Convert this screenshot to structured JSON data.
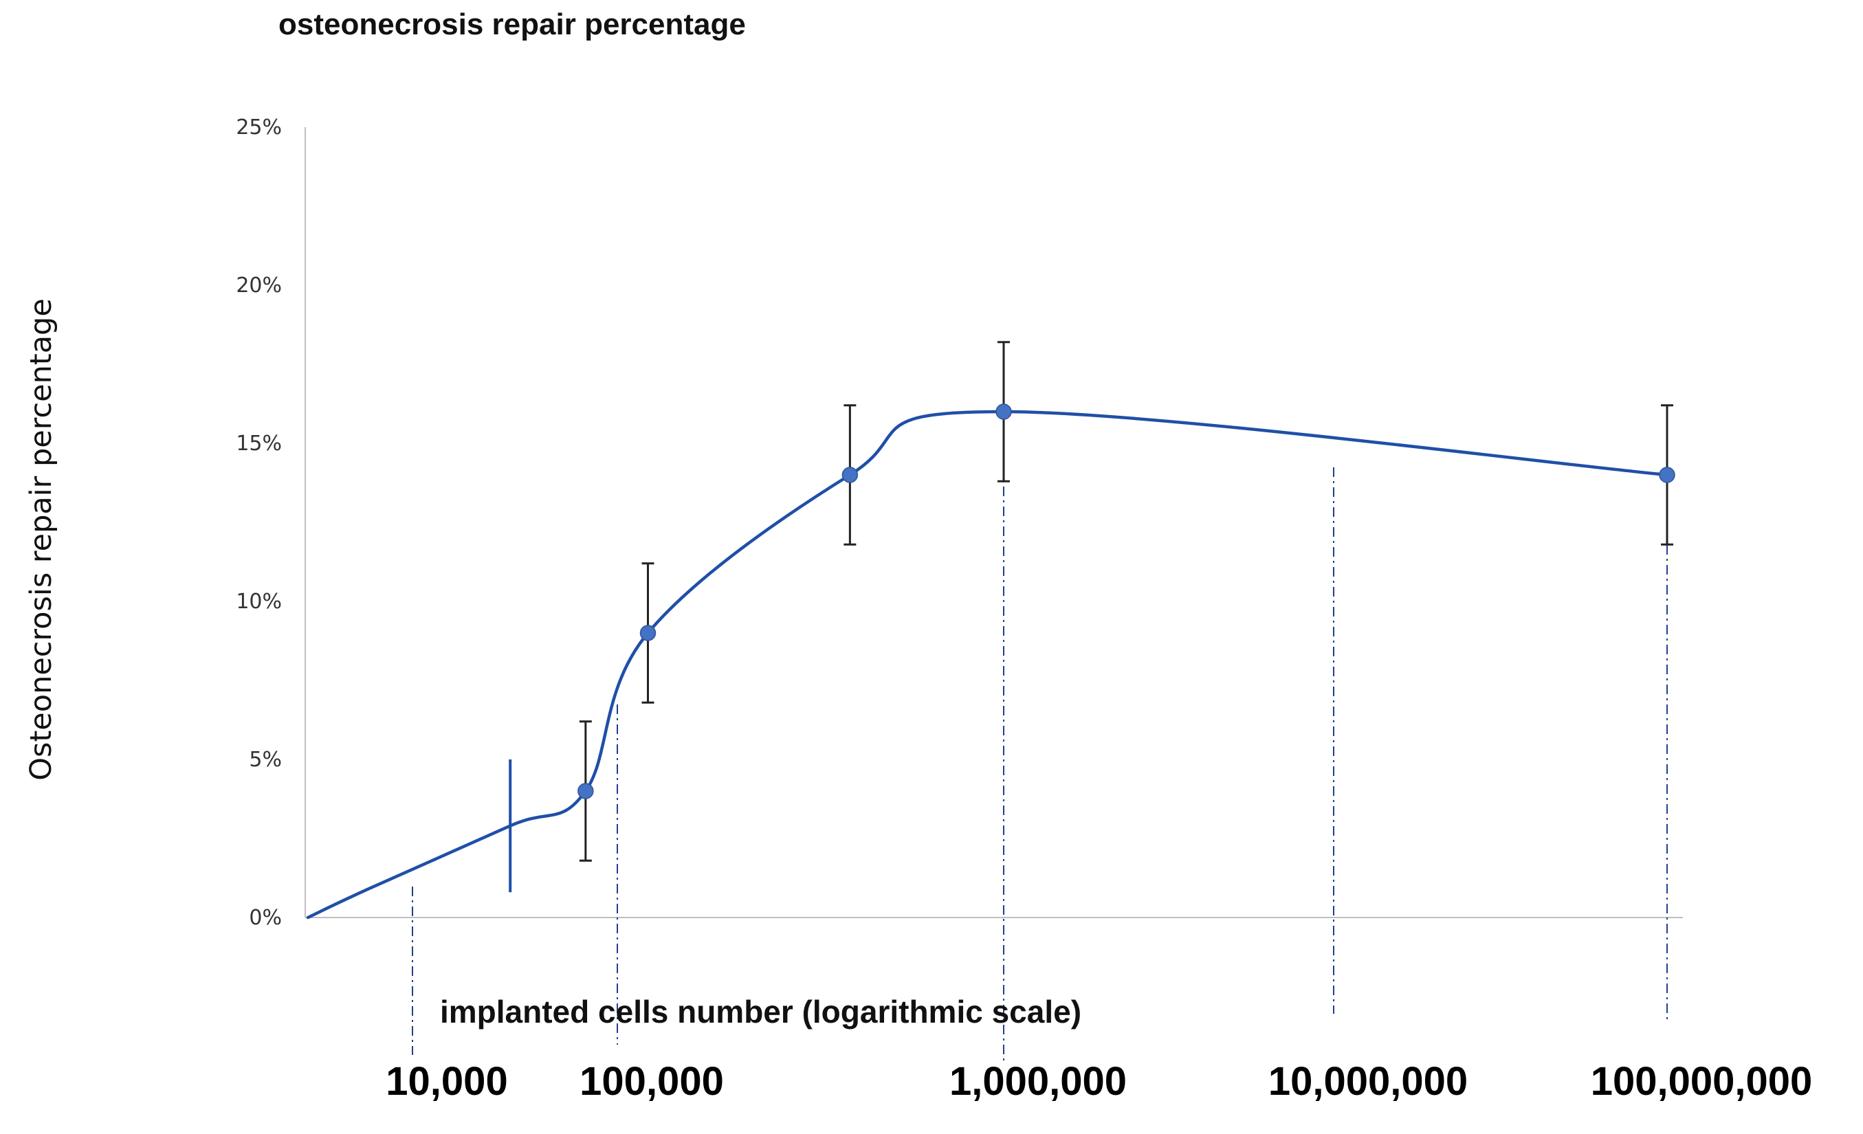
{
  "chart_data": {
    "type": "line",
    "title": "osteonecrosis repair percentage",
    "xlabel": "implanted cells number (logarithmic scale)",
    "ylabel": "Osteonecrosis repair percentage",
    "x_scale": "log",
    "y_tick_labels": [
      "0%",
      "5%",
      "10%",
      "15%",
      "20%",
      "25%"
    ],
    "y_ticks": [
      0,
      5,
      10,
      15,
      20,
      25
    ],
    "ylim": [
      0,
      25
    ],
    "x_tick_labels": [
      "10,000",
      "100,000",
      "1,000,000",
      "10,000,000",
      "100,000,000"
    ],
    "x_ticks": [
      10000,
      100000,
      1000000,
      10000000,
      100000000
    ],
    "grid": false,
    "colors": {
      "line": "#1f4fa8",
      "marker": "#4472c4",
      "error_bar": "#222222",
      "axis": "#bfbfbf",
      "guide": "#1f3f8f"
    },
    "series": [
      {
        "x": [
          3000,
          6000,
          30000,
          70000,
          120000,
          400000,
          1000000,
          100000000
        ],
        "y": [
          0,
          0.9,
          2.9,
          4.0,
          9.0,
          14.0,
          16.0,
          14.0
        ],
        "markers": [
          false,
          false,
          false,
          true,
          true,
          true,
          true,
          true
        ],
        "error": [
          null,
          null,
          2.1,
          2.2,
          2.2,
          2.2,
          2.2,
          2.2
        ],
        "error_capped": [
          false,
          false,
          false,
          true,
          true,
          true,
          true,
          true
        ]
      }
    ]
  }
}
